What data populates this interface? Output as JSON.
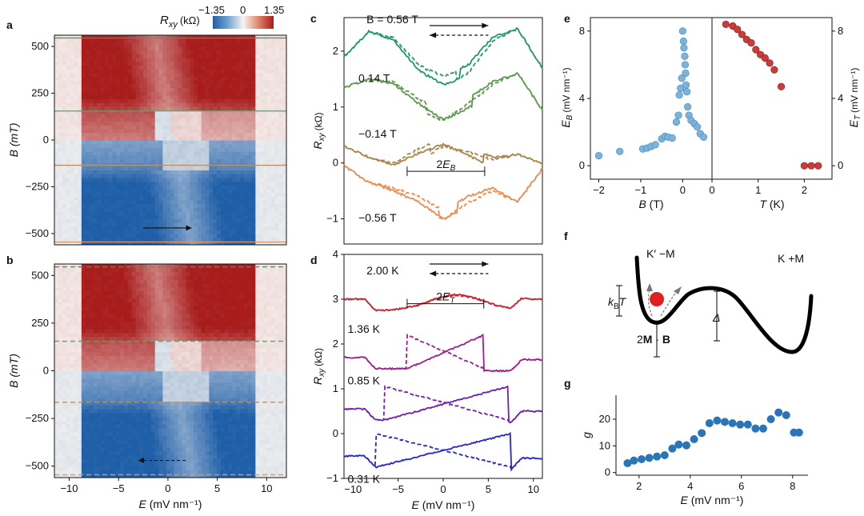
{
  "panel_labels": {
    "a": "a",
    "b": "b",
    "c": "c",
    "d": "d",
    "e": "e",
    "f": "f",
    "g": "g"
  },
  "colorbar": {
    "label": "R",
    "label_sub": "xy",
    "unit": "(kΩ)",
    "min_label": "−1.35",
    "mid_label": "0",
    "max_label": "1.35",
    "colors": {
      "neg": "#1f5fa8",
      "zero": "#f7f4f2",
      "pos": "#a81c1c"
    }
  },
  "chart_data": [
    {
      "id": "a",
      "type": "heatmap",
      "xlabel": "E (mV nm⁻¹)",
      "ylabel": "B (mT)",
      "xlim": [
        -11.5,
        12
      ],
      "ylim": [
        -560,
        560
      ],
      "yticks": [
        "500",
        "250",
        "0",
        "−250",
        "−500"
      ],
      "ytick_values": [
        500,
        250,
        0,
        -250,
        -500
      ],
      "line_style": "solid",
      "lines_B": [
        {
          "value": 545,
          "color": "#3a9a6a"
        },
        {
          "value": 155,
          "color": "#6a9a6a"
        },
        {
          "value": -135,
          "color": "#c09060"
        },
        {
          "value": -545,
          "color": "#e0956a"
        }
      ],
      "arrow": {
        "from": [
          -2.5,
          -470
        ],
        "to": [
          2.4,
          -470
        ],
        "style": "solid"
      }
    },
    {
      "id": "b",
      "type": "heatmap",
      "xlabel": "E (mV nm⁻¹)",
      "ylabel": "B (mT)",
      "xlim": [
        -11.5,
        12
      ],
      "ylim": [
        -560,
        560
      ],
      "xticks": [
        "−10",
        "−5",
        "0",
        "5",
        "10"
      ],
      "xtick_values": [
        -10,
        -5,
        0,
        5,
        10
      ],
      "yticks": [
        "500",
        "250",
        "0",
        "−250",
        "−500"
      ],
      "ytick_values": [
        500,
        250,
        0,
        -250,
        -500
      ],
      "line_style": "dashed",
      "lines_B": [
        {
          "value": 545,
          "color": "#3a9a6a"
        },
        {
          "value": 155,
          "color": "#6a9a6a"
        },
        {
          "value": -165,
          "color": "#c09060"
        },
        {
          "value": -545,
          "color": "#e0956a"
        }
      ],
      "arrow": {
        "from": [
          1.8,
          -470
        ],
        "to": [
          -3.0,
          -470
        ],
        "style": "dashed"
      }
    },
    {
      "id": "c",
      "type": "line",
      "xlabel": "E (mV nm⁻¹)",
      "ylabel": "R",
      "ylabel_sub": "xy",
      "ylabel_unit": "(kΩ)",
      "xlim": [
        -11,
        11
      ],
      "ylim": [
        -1.45,
        2.6
      ],
      "yticks": [
        "2",
        "1",
        "0",
        "−1"
      ],
      "ytick_values": [
        2,
        1,
        0,
        -1
      ],
      "curves": [
        {
          "label": "B = 0.56 T",
          "color": "#1e9a6a",
          "offset": 1.55,
          "switch": [
            1.5,
            1.9
          ],
          "base": 0.15,
          "shape": [
            0.35,
            0.8,
            0.7,
            0.2,
            0.0,
            0.2,
            0.7,
            0.85,
            0.15
          ]
        },
        {
          "label": "0.14 T",
          "color": "#5e9a50",
          "offset": 0.9,
          "switch": [
            -1.8,
            3.3
          ],
          "base": 0.0,
          "shape": [
            0.45,
            0.6,
            0.55,
            0.25,
            0.0,
            0.25,
            0.55,
            0.7,
            0.05
          ]
        },
        {
          "label": "−0.14 T",
          "color": "#a8864a",
          "offset": -0.1,
          "switch": [
            -1.5,
            4.5
          ],
          "base": 0.0,
          "shape": [
            0.4,
            0.2,
            0.1,
            0.35,
            0.55,
            0.4,
            0.2,
            0.25,
            0.1
          ]
        },
        {
          "label": "−0.56 T",
          "color": "#f08a50",
          "offset": -0.9,
          "switch": [
            -0.5,
            1.6
          ],
          "base": 0.3,
          "shape": [
            0.85,
            0.55,
            0.45,
            0.3,
            0.05,
            0.3,
            0.45,
            0.2,
            0.8
          ]
        }
      ],
      "annotation": {
        "label": "2E",
        "label_sub": "B",
        "from": -4.0,
        "to": 4.6,
        "y": -0.15
      },
      "legend_arrows": {
        "solid_label": "→",
        "dashed_label": "←"
      }
    },
    {
      "id": "d",
      "type": "line",
      "xlabel": "E (mV nm⁻¹)",
      "ylabel": "R",
      "ylabel_sub": "xy",
      "ylabel_unit": "(kΩ)",
      "xlim": [
        -11,
        11
      ],
      "ylim": [
        -1.0,
        4.0
      ],
      "xticks": [
        "−10",
        "−5",
        "0",
        "5",
        "10"
      ],
      "xtick_values": [
        -10,
        -5,
        0,
        5,
        10
      ],
      "yticks": [
        "4",
        "3",
        "2",
        "1",
        "0",
        "−1"
      ],
      "ytick_values": [
        4,
        3,
        2,
        1,
        0,
        -1
      ],
      "curves": [
        {
          "label": "2.00 K",
          "color": "#d02030",
          "offset": 3.0,
          "switch": [
            1.0,
            2.2
          ]
        },
        {
          "label": "1.36 K",
          "color": "#a0208a",
          "offset": 1.7,
          "switch": [
            -4.0,
            4.5
          ]
        },
        {
          "label": "0.85 K",
          "color": "#7020b0",
          "offset": 0.55,
          "switch": [
            -6.5,
            7.2
          ]
        },
        {
          "label": "0.31 K",
          "color": "#2828c8",
          "offset": -0.5,
          "switch": [
            -7.5,
            7.5
          ]
        }
      ],
      "annotation": {
        "label": "2E",
        "label_sub": "T",
        "from": -4.0,
        "to": 4.5,
        "y": 2.9
      }
    },
    {
      "id": "e_left",
      "type": "scatter",
      "xlabel": "B (T)",
      "ylabel": "E",
      "ylabel_sub": "B",
      "ylabel_unit": "(mV nm⁻¹)",
      "xlim": [
        -2.2,
        0.7
      ],
      "ylim": [
        -0.8,
        8.8
      ],
      "xticks": [
        "−2",
        "−1",
        "0"
      ],
      "xtick_values": [
        -2,
        -1,
        0
      ],
      "yticks": [
        "8",
        "4",
        "0"
      ],
      "ytick_values": [
        8,
        4,
        0
      ],
      "color": "#7ab4dc",
      "x": [
        -2.0,
        -1.5,
        -0.95,
        -0.85,
        -0.75,
        -0.65,
        -0.5,
        -0.42,
        -0.35,
        -0.25,
        -0.15,
        -0.1,
        -0.08,
        -0.05,
        -0.02,
        0.0,
        0.02,
        0.03,
        0.05,
        0.06,
        0.07,
        0.08,
        0.1,
        0.12,
        0.15,
        0.2,
        0.28,
        0.35,
        0.42,
        0.5
      ],
      "y": [
        0.6,
        0.85,
        1.0,
        1.05,
        1.15,
        1.25,
        1.6,
        1.75,
        1.7,
        1.65,
        2.6,
        3.0,
        4.2,
        4.6,
        5.2,
        8.0,
        7.4,
        7.0,
        6.5,
        6.0,
        5.5,
        4.8,
        4.4,
        3.5,
        3.0,
        2.7,
        2.5,
        2.3,
        1.9,
        1.7
      ]
    },
    {
      "id": "e_right",
      "type": "scatter",
      "xlabel": "T (K)",
      "ylabel": "E",
      "ylabel_sub": "T",
      "ylabel_unit": "(mV nm⁻¹)",
      "xlim": [
        0,
        2.6
      ],
      "ylim": [
        -0.8,
        8.8
      ],
      "xticks": [
        "0",
        "1",
        "2"
      ],
      "xtick_values": [
        0,
        1,
        2
      ],
      "yticks": [
        "8",
        "4",
        "0"
      ],
      "ytick_values": [
        8,
        4,
        0
      ],
      "color": "#c83c3c",
      "x": [
        0.3,
        0.45,
        0.55,
        0.65,
        0.75,
        0.85,
        0.95,
        1.05,
        1.15,
        1.25,
        1.35,
        1.5,
        2.0,
        2.15,
        2.3
      ],
      "y": [
        8.4,
        8.3,
        8.1,
        7.8,
        7.5,
        7.3,
        6.9,
        6.6,
        6.4,
        6.1,
        5.7,
        4.7,
        0.0,
        0.0,
        0.0
      ]
    },
    {
      "id": "g",
      "type": "scatter",
      "xlabel": "E (mV nm⁻¹)",
      "ylabel": "g",
      "xlim": [
        1.1,
        8.6
      ],
      "ylim": [
        -1,
        29
      ],
      "xticks": [
        "2",
        "4",
        "6",
        "8"
      ],
      "xtick_values": [
        2,
        4,
        6,
        8
      ],
      "yticks": [
        "20",
        "10",
        "0"
      ],
      "ytick_values": [
        20,
        10,
        0
      ],
      "color": "#2a74b8",
      "x": [
        1.55,
        1.8,
        2.1,
        2.4,
        2.7,
        3.0,
        3.3,
        3.55,
        3.85,
        4.15,
        4.45,
        4.75,
        5.05,
        5.35,
        5.65,
        5.95,
        6.25,
        6.55,
        6.85,
        7.15,
        7.45,
        7.75,
        8.05,
        8.25
      ],
      "y": [
        3.5,
        4.5,
        5.0,
        5.5,
        6.0,
        6.5,
        9.0,
        10.5,
        10.2,
        12.5,
        14.8,
        18.5,
        19.5,
        19.0,
        18.5,
        18.0,
        18.0,
        16.5,
        16.5,
        20.0,
        22.5,
        21.5,
        15.0,
        15.0
      ]
    }
  ],
  "schematic_f": {
    "left_label": "K′  −M",
    "right_label": "K  +M",
    "kbt_label": "k",
    "kbt_sub": "B",
    "kbt_tail": "T",
    "mb_label_pre": "2",
    "mb_label_bold1": "M",
    "mb_label_dot": " · ",
    "mb_label_bold2": "B",
    "delta_label": "Δ",
    "ball_color": "#e02020"
  }
}
